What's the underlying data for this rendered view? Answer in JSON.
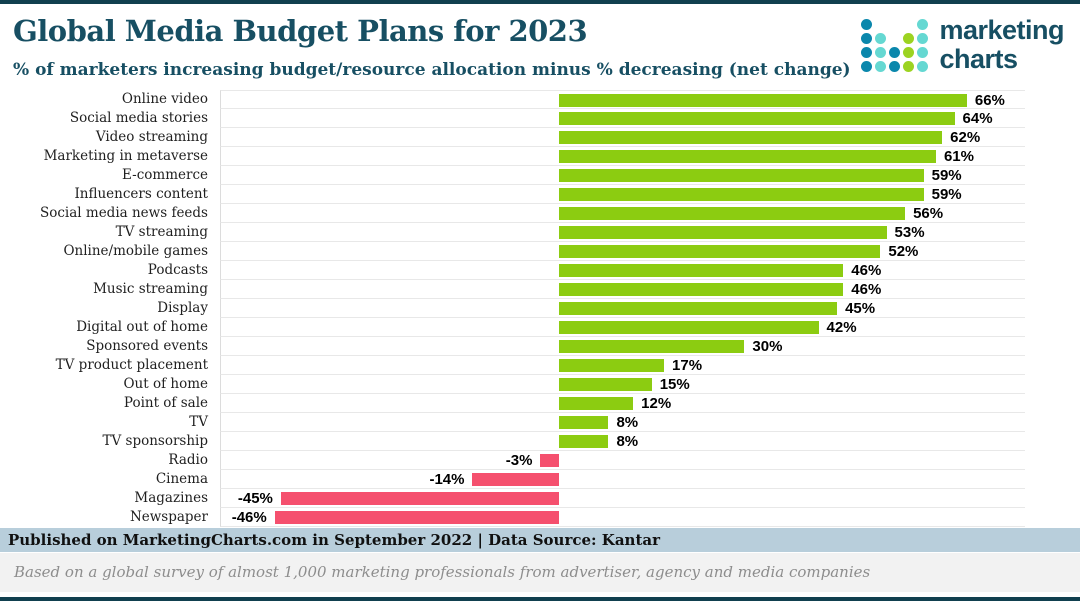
{
  "header": {
    "title": "Global Media Budget Plans for 2023",
    "subtitle": "% of marketers increasing budget/resource allocation minus % decreasing (net change)"
  },
  "logo": {
    "line1": "marketing",
    "line2": "charts",
    "dot_rows": [
      "T...C",
      "TC.GC",
      "TCTGC",
      "TCTGC"
    ],
    "dot_colors": {
      "T": "#0a87ac",
      "C": "#65d8d2",
      "G": "#9cd321"
    }
  },
  "chart_data": {
    "type": "bar",
    "orientation": "horizontal",
    "unit": "%",
    "categories": [
      "Online video",
      "Social media stories",
      "Video streaming",
      "Marketing in metaverse",
      "E-commerce",
      "Influencers content",
      "Social media news feeds",
      "TV streaming",
      "Online/mobile games",
      "Podcasts",
      "Music streaming",
      "Display",
      "Digital out of home",
      "Sponsored events",
      "TV product placement",
      "Out of home",
      "Point of sale",
      "TV",
      "TV sponsorship",
      "Radio",
      "Cinema",
      "Magazines",
      "Newspaper"
    ],
    "values": [
      66,
      64,
      62,
      61,
      59,
      59,
      56,
      53,
      52,
      46,
      46,
      45,
      42,
      30,
      17,
      15,
      12,
      8,
      8,
      -3,
      -14,
      -45,
      -46
    ],
    "positive_color": "#8ccc11",
    "negative_color": "#f5506e",
    "xlim": [
      -55,
      76
    ],
    "grid": "horizontal-light",
    "legend": "none",
    "value_labels": "outside-end"
  },
  "footer": {
    "published": "Published on MarketingCharts.com in September 2022 | Data Source: Kantar",
    "note": "Based on a global survey of almost 1,000 marketing professionals from advertiser, agency and media companies"
  }
}
